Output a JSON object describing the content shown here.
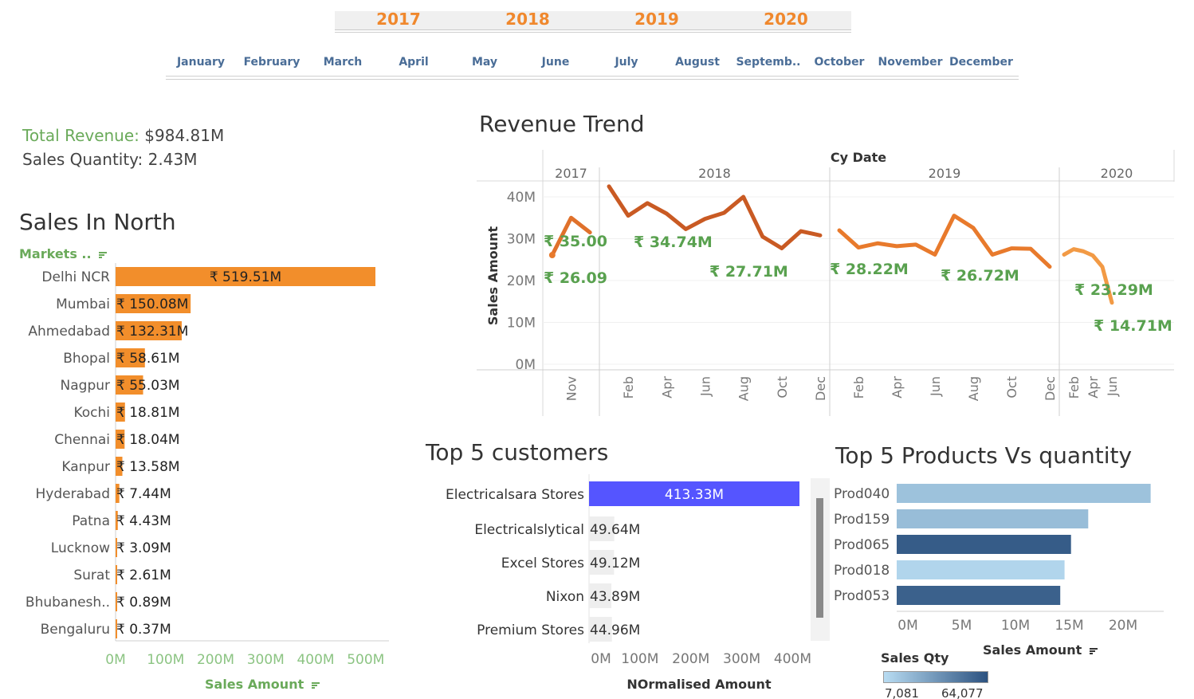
{
  "filters": {
    "years": [
      "2017",
      "2018",
      "2019",
      "2020"
    ],
    "months": [
      "January",
      "February",
      "March",
      "April",
      "May",
      "June",
      "July",
      "August",
      "Septemb..",
      "October",
      "November",
      "December"
    ]
  },
  "kpis": {
    "total_revenue_label": "Total Revenue:",
    "total_revenue_value": "$984.81M",
    "sales_quantity_label": "Sales Quantity:",
    "sales_quantity_value": "2.43M"
  },
  "sales_north": {
    "title": "Sales In North",
    "dimension_label": "Markets ..",
    "measure_label": "Sales Amount",
    "bar_color": "#f28e2b",
    "markets": [
      "Delhi NCR",
      "Mumbai",
      "Ahmedabad",
      "Bhopal",
      "Nagpur",
      "Kochi",
      "Chennai",
      "Kanpur",
      "Hyderabad",
      "Patna",
      "Lucknow",
      "Surat",
      "Bhubanesh..",
      "Bengaluru"
    ],
    "values": [
      519.51,
      150.08,
      132.31,
      58.61,
      55.03,
      18.81,
      18.04,
      13.58,
      7.44,
      4.43,
      3.09,
      2.61,
      0.89,
      0.37
    ],
    "labels": [
      "₹ 519.51M",
      "₹ 150.08M",
      "₹ 132.31M",
      "₹ 58.61M",
      "₹ 55.03M",
      "₹ 18.81M",
      "₹ 18.04M",
      "₹ 13.58M",
      "₹ 7.44M",
      "₹ 4.43M",
      "₹ 3.09M",
      "₹ 2.61M",
      "₹ 0.89M",
      "₹ 0.37M"
    ],
    "axis_ticks": [
      "0M",
      "100M",
      "200M",
      "300M",
      "400M",
      "500M"
    ]
  },
  "revenue_trend": {
    "title": "Revenue Trend",
    "column_header": "Cy Date",
    "ylabel": "Sales Amount",
    "y_ticks": [
      "40M",
      "30M",
      "20M",
      "10M",
      "0M"
    ],
    "panels": [
      {
        "year": "2017",
        "ticks": [
          "Nov"
        ]
      },
      {
        "year": "2018",
        "ticks": [
          "Feb",
          "Apr",
          "Jun",
          "Aug",
          "Oct",
          "Dec"
        ]
      },
      {
        "year": "2019",
        "ticks": [
          "Feb",
          "Apr",
          "Jun",
          "Aug",
          "Oct",
          "Dec"
        ]
      },
      {
        "year": "2020",
        "ticks": [
          "Feb",
          "Apr",
          "Jun"
        ]
      }
    ],
    "labels": [
      "₹ 35.00",
      "₹ 26.09",
      "₹ 34.74M",
      "₹ 27.71M",
      "₹ 28.22M",
      "₹ 26.72M",
      "₹ 23.29M",
      "₹ 14.71M"
    ],
    "label_color": "#59a14f"
  },
  "top_customers": {
    "title": "Top 5 customers",
    "axis_label": "NOrmalised Amount",
    "axis_ticks": [
      "0M",
      "100M",
      "200M",
      "300M",
      "400M"
    ],
    "customers": [
      "Electricalsara Stores",
      "Electricalslytical",
      "Excel Stores",
      "Nixon",
      "Premium Stores"
    ],
    "values": [
      413.33,
      49.64,
      49.12,
      43.89,
      44.96
    ],
    "labels": [
      "413.33M",
      "49.64M",
      "49.12M",
      "43.89M",
      "44.96M"
    ],
    "highlight_color": "#5555ff"
  },
  "top_products": {
    "title": "Top 5 Products Vs quantity",
    "axis_label": "Sales Amount",
    "axis_ticks": [
      "0M",
      "5M",
      "10M",
      "15M",
      "20M"
    ],
    "products": [
      "Prod040",
      "Prod159",
      "Prod065",
      "Prod018",
      "Prod053"
    ],
    "legend_title": "Sales Qty",
    "legend_min": "7,081",
    "legend_max": "64,077"
  },
  "chart_data": [
    {
      "type": "bar",
      "title": "Sales In North",
      "categories": [
        "Delhi NCR",
        "Mumbai",
        "Ahmedabad",
        "Bhopal",
        "Nagpur",
        "Kochi",
        "Chennai",
        "Kanpur",
        "Hyderabad",
        "Patna",
        "Lucknow",
        "Surat",
        "Bhubanesh..",
        "Bengaluru"
      ],
      "values": [
        519.51,
        150.08,
        132.31,
        58.61,
        55.03,
        18.81,
        18.04,
        13.58,
        7.44,
        4.43,
        3.09,
        2.61,
        0.89,
        0.37
      ],
      "xlabel": "Sales Amount",
      "ylabel": "Markets ..",
      "xlim": [
        0,
        545
      ]
    },
    {
      "type": "line",
      "title": "Revenue Trend",
      "ylabel": "Sales Amount",
      "ylim": [
        0,
        45
      ],
      "series": [
        {
          "x": [
            "2017-10",
            "2017-11",
            "2017-12"
          ],
          "values": [
            26.09,
            35.0,
            31.5
          ]
        },
        {
          "x": [
            "2018-01",
            "2018-02",
            "2018-03",
            "2018-04",
            "2018-05",
            "2018-06",
            "2018-07",
            "2018-08",
            "2018-09",
            "2018-10",
            "2018-11",
            "2018-12"
          ],
          "values": [
            42.5,
            35.5,
            38.5,
            36.0,
            32.3,
            34.74,
            36.2,
            40.0,
            30.5,
            27.71,
            31.8,
            30.8
          ]
        },
        {
          "x": [
            "2019-01",
            "2019-02",
            "2019-03",
            "2019-04",
            "2019-05",
            "2019-06",
            "2019-07",
            "2019-08",
            "2019-09",
            "2019-10",
            "2019-11",
            "2019-12"
          ],
          "values": [
            32.0,
            27.9,
            28.9,
            28.22,
            28.6,
            26.2,
            35.5,
            32.6,
            26.2,
            27.7,
            27.6,
            23.3
          ]
        },
        {
          "x": [
            "2020-01",
            "2020-02",
            "2020-03",
            "2020-04",
            "2020-05",
            "2020-06"
          ],
          "values": [
            26.2,
            27.5,
            27.0,
            26.0,
            23.29,
            14.71
          ]
        }
      ]
    },
    {
      "type": "bar",
      "title": "Top 5 customers",
      "categories": [
        "Electricalsara Stores",
        "Electricalslytical",
        "Excel Stores",
        "Nixon",
        "Premium Stores"
      ],
      "values": [
        413.33,
        49.64,
        49.12,
        43.89,
        44.96
      ],
      "xlabel": "NOrmalised Amount",
      "xlim": [
        0,
        420
      ]
    },
    {
      "type": "bar",
      "title": "Top 5 Products Vs quantity",
      "categories": [
        "Prod040",
        "Prod159",
        "Prod065",
        "Prod018",
        "Prod053"
      ],
      "values": [
        23.6,
        17.8,
        16.2,
        15.6,
        15.2
      ],
      "color_values": [
        18000,
        20000,
        60000,
        10000,
        58000
      ],
      "xlabel": "Sales Amount",
      "xlim": [
        0,
        25
      ]
    }
  ]
}
